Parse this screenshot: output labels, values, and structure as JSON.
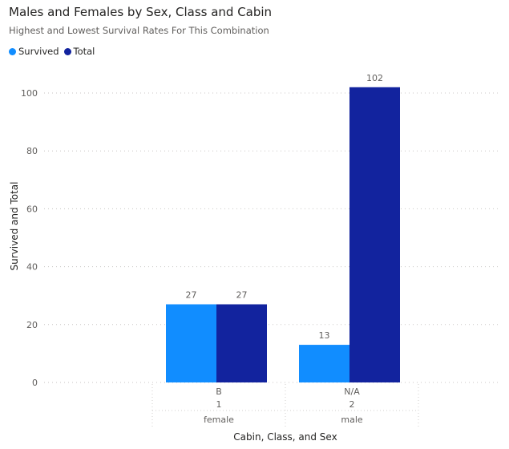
{
  "chart_data": {
    "type": "bar",
    "title": "Males and Females by Sex, Class and Cabin",
    "subtitle": "Highest and Lowest Survival Rates For This Combination",
    "xlabel": "Cabin, Class, and Sex",
    "ylabel": "Survived and Total",
    "ylim": [
      0,
      110
    ],
    "yticks": [
      0,
      20,
      40,
      60,
      80,
      100
    ],
    "grid": true,
    "legend_position": "top-left",
    "categories": [
      {
        "cabin": "B",
        "class": "1",
        "sex": "female"
      },
      {
        "cabin": "N/A",
        "class": "2",
        "sex": "male"
      }
    ],
    "series": [
      {
        "name": "Survived",
        "color": "#118dff",
        "values": [
          27,
          13
        ]
      },
      {
        "name": "Total",
        "color": "#12239e",
        "values": [
          27,
          102
        ]
      }
    ]
  }
}
